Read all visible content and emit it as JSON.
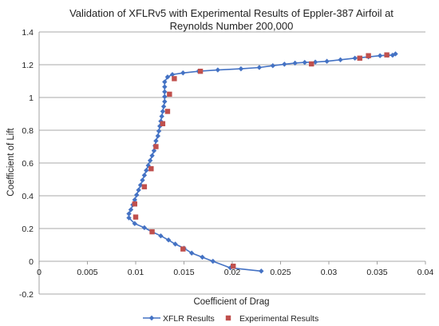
{
  "chart_data": {
    "type": "scatter",
    "title": [
      "Validation of XFLRv5 with Experimental Results of Eppler-387 Airfoil at",
      "Reynolds Number 200,000"
    ],
    "xlabel": "Coefficient of Drag",
    "ylabel": "Coefficient of Lift",
    "xlim": [
      0,
      0.04
    ],
    "ylim": [
      -0.2,
      1.4
    ],
    "xticks": [
      "0",
      "0.005",
      "0.01",
      "0.015",
      "0.02",
      "0.025",
      "0.03",
      "0.035",
      "0.04"
    ],
    "yticks": [
      "-0.2",
      "0",
      "0.2",
      "0.4",
      "0.6",
      "0.8",
      "1",
      "1.2",
      "1.4"
    ],
    "grid": "horizontal",
    "legend_position": "bottom",
    "series": [
      {
        "name": "XFLR Results",
        "color": "#4472C4",
        "marker": "diamond",
        "line": true,
        "points": [
          [
            0.023,
            -0.06
          ],
          [
            0.0198,
            -0.04
          ],
          [
            0.018,
            0.0
          ],
          [
            0.0169,
            0.025
          ],
          [
            0.0158,
            0.05
          ],
          [
            0.015,
            0.08
          ],
          [
            0.0141,
            0.105
          ],
          [
            0.0134,
            0.13
          ],
          [
            0.0126,
            0.155
          ],
          [
            0.0117,
            0.18
          ],
          [
            0.0109,
            0.205
          ],
          [
            0.0099,
            0.23
          ],
          [
            0.0093,
            0.265
          ],
          [
            0.0093,
            0.29
          ],
          [
            0.0095,
            0.315
          ],
          [
            0.0097,
            0.345
          ],
          [
            0.0099,
            0.375
          ],
          [
            0.0101,
            0.405
          ],
          [
            0.0103,
            0.435
          ],
          [
            0.0105,
            0.465
          ],
          [
            0.0107,
            0.495
          ],
          [
            0.0109,
            0.525
          ],
          [
            0.0111,
            0.555
          ],
          [
            0.0113,
            0.585
          ],
          [
            0.0115,
            0.615
          ],
          [
            0.0117,
            0.645
          ],
          [
            0.0119,
            0.675
          ],
          [
            0.012,
            0.705
          ],
          [
            0.0121,
            0.735
          ],
          [
            0.0123,
            0.765
          ],
          [
            0.0124,
            0.795
          ],
          [
            0.0125,
            0.825
          ],
          [
            0.0126,
            0.855
          ],
          [
            0.0127,
            0.885
          ],
          [
            0.0128,
            0.915
          ],
          [
            0.0129,
            0.945
          ],
          [
            0.013,
            0.975
          ],
          [
            0.013,
            1.005
          ],
          [
            0.013,
            1.035
          ],
          [
            0.013,
            1.065
          ],
          [
            0.013,
            1.095
          ],
          [
            0.0133,
            1.125
          ],
          [
            0.0138,
            1.14
          ],
          [
            0.0149,
            1.15
          ],
          [
            0.0165,
            1.16
          ],
          [
            0.0185,
            1.168
          ],
          [
            0.0209,
            1.175
          ],
          [
            0.0228,
            1.183
          ],
          [
            0.0242,
            1.194
          ],
          [
            0.0254,
            1.203
          ],
          [
            0.0265,
            1.21
          ],
          [
            0.0275,
            1.214
          ],
          [
            0.0286,
            1.216
          ],
          [
            0.0298,
            1.221
          ],
          [
            0.0312,
            1.23
          ],
          [
            0.0327,
            1.24
          ],
          [
            0.0341,
            1.248
          ],
          [
            0.0353,
            1.255
          ],
          [
            0.0361,
            1.258
          ],
          [
            0.0366,
            1.258
          ],
          [
            0.0369,
            1.266
          ]
        ]
      },
      {
        "name": "Experimental Results",
        "color": "#C0504D",
        "marker": "square",
        "line": false,
        "points": [
          [
            0.0201,
            -0.03
          ],
          [
            0.0149,
            0.075
          ],
          [
            0.0117,
            0.18
          ],
          [
            0.01,
            0.27
          ],
          [
            0.0099,
            0.35
          ],
          [
            0.0109,
            0.455
          ],
          [
            0.0116,
            0.565
          ],
          [
            0.0121,
            0.7
          ],
          [
            0.0128,
            0.84
          ],
          [
            0.0133,
            0.915
          ],
          [
            0.0135,
            1.02
          ],
          [
            0.014,
            1.115
          ],
          [
            0.0167,
            1.16
          ],
          [
            0.0282,
            1.205
          ],
          [
            0.0332,
            1.24
          ],
          [
            0.0341,
            1.255
          ],
          [
            0.036,
            1.26
          ]
        ]
      }
    ]
  }
}
